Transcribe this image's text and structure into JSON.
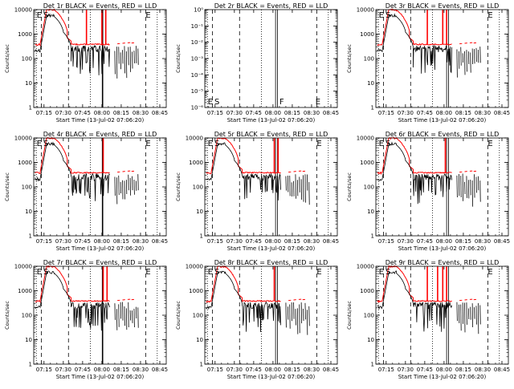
{
  "chart_data": {
    "type": "line",
    "layout": "3x3 grid",
    "x_tick_labels": [
      "07:15",
      "07:30",
      "07:45",
      "08:00",
      "08:15",
      "08:30",
      "08:45"
    ],
    "x_tick_minutes": [
      15,
      30,
      45,
      60,
      75,
      90,
      105
    ],
    "xlim_minutes": [
      7,
      110
    ],
    "xlabel": "Start Time (13-Jul-02 07:06:20)",
    "ylabel": "Counts/sec",
    "y_scale": "log",
    "series_colors": {
      "events": "#000000",
      "lld": "#ff0000"
    },
    "panels": [
      {
        "title": "Det 1r BLACK = Events, RED = LLD",
        "ylim": [
          1,
          10000
        ],
        "y_tick_labels": [
          "1",
          "10",
          "100",
          "1000",
          "10000"
        ],
        "y_tick_values": [
          1,
          10,
          100,
          1000,
          10000
        ],
        "markers": [
          "E",
          "S",
          "E"
        ],
        "has_data": true,
        "lld_spikes": [
          48,
          60,
          63
        ],
        "solid_lines": [
          60.5
        ],
        "dashed_lines": [
          13,
          34,
          94
        ],
        "dotted_lines": [
          9,
          51,
          103
        ]
      },
      {
        "title": "Det 2r BLACK = Events, RED = LLD",
        "ylim": [
          1e-06,
          1
        ],
        "y_tick_labels": [
          "10⁰",
          "10⁻¹",
          "10⁻²",
          "10⁻³",
          "10⁻⁴",
          "10⁻⁵",
          "10⁻⁶"
        ],
        "y_tick_values": [
          1,
          0.1,
          0.01,
          0.001,
          0.0001,
          1e-05,
          1e-06
        ],
        "markers": [
          "E",
          "S",
          "F",
          "E"
        ],
        "has_data": false,
        "lld_spikes": [],
        "solid_lines": [
          62,
          63.5
        ],
        "dashed_lines": [
          13,
          34,
          94
        ],
        "dotted_lines": [
          9,
          51,
          103
        ]
      },
      {
        "title": "Det 3r BLACK = Events, RED = LLD",
        "ylim": [
          1,
          10000
        ],
        "y_tick_labels": [
          "1",
          "10",
          "100",
          "1000",
          "10000"
        ],
        "y_tick_values": [
          1,
          10,
          100,
          1000,
          10000
        ],
        "markers": [
          "E",
          "S",
          "E"
        ],
        "has_data": true,
        "lld_spikes": [
          47,
          59,
          62
        ],
        "solid_lines": [
          62,
          63.5
        ],
        "dashed_lines": [
          13,
          34,
          94
        ],
        "dotted_lines": [
          9,
          51,
          103
        ]
      },
      {
        "title": "Det 4r BLACK = Events, RED = LLD",
        "ylim": [
          1,
          10000
        ],
        "y_tick_labels": [
          "1",
          "10",
          "100",
          "1000",
          "10000"
        ],
        "y_tick_values": [
          1,
          10,
          100,
          1000,
          10000
        ],
        "markers": [
          "E",
          "S",
          "E"
        ],
        "has_data": true,
        "lld_spikes": [
          61
        ],
        "solid_lines": [
          60.5
        ],
        "dashed_lines": [
          13,
          34,
          94
        ],
        "dotted_lines": [
          9,
          51,
          103
        ]
      },
      {
        "title": "Det 5r BLACK = Events, RED = LLD",
        "ylim": [
          1,
          10000
        ],
        "y_tick_labels": [
          "1",
          "10",
          "100",
          "1000",
          "10000"
        ],
        "y_tick_values": [
          1,
          10,
          100,
          1000,
          10000
        ],
        "markers": [
          "E",
          "S",
          "E"
        ],
        "has_data": true,
        "lld_spikes": [
          61,
          64
        ],
        "solid_lines": [
          62,
          63.5
        ],
        "dashed_lines": [
          13,
          34,
          94
        ],
        "dotted_lines": [
          9,
          51,
          103
        ]
      },
      {
        "title": "Det 6r BLACK = Events, RED = LLD",
        "ylim": [
          1,
          10000
        ],
        "y_tick_labels": [
          "1",
          "10",
          "100",
          "1000",
          "10000"
        ],
        "y_tick_values": [
          1,
          10,
          100,
          1000,
          10000
        ],
        "markers": [
          "E",
          "S",
          "E"
        ],
        "has_data": true,
        "lld_spikes": [
          61
        ],
        "solid_lines": [
          62,
          63.5
        ],
        "dashed_lines": [
          13,
          34,
          94
        ],
        "dotted_lines": [
          9,
          51,
          103
        ]
      },
      {
        "title": "Det 7r BLACK = Events, RED = LLD",
        "ylim": [
          1,
          10000
        ],
        "y_tick_labels": [
          "1",
          "10",
          "100",
          "1000",
          "10000"
        ],
        "y_tick_values": [
          1,
          10,
          100,
          1000,
          10000
        ],
        "markers": [
          "E",
          "S",
          "E"
        ],
        "has_data": true,
        "lld_spikes": [
          61,
          64
        ],
        "solid_lines": [
          60.5
        ],
        "dashed_lines": [
          13,
          34,
          94
        ],
        "dotted_lines": [
          9,
          51,
          103
        ]
      },
      {
        "title": "Det 8r BLACK = Events, RED = LLD",
        "ylim": [
          1,
          10000
        ],
        "y_tick_labels": [
          "1",
          "10",
          "100",
          "1000",
          "10000"
        ],
        "y_tick_values": [
          1,
          10,
          100,
          1000,
          10000
        ],
        "markers": [
          "E",
          "S",
          "E"
        ],
        "has_data": true,
        "lld_spikes": [
          61
        ],
        "solid_lines": [
          62,
          63.5
        ],
        "dashed_lines": [
          13,
          34,
          94
        ],
        "dotted_lines": [
          9,
          51,
          103
        ]
      },
      {
        "title": "Det 9r BLACK = Events, RED = LLD",
        "ylim": [
          1,
          10000
        ],
        "y_tick_labels": [
          "1",
          "10",
          "100",
          "1000",
          "10000"
        ],
        "y_tick_values": [
          1,
          10,
          100,
          1000,
          10000
        ],
        "markers": [
          "E",
          "S",
          "E"
        ],
        "has_data": true,
        "lld_spikes": [
          47,
          55,
          59,
          62
        ],
        "solid_lines": [
          62,
          63.5
        ],
        "dashed_lines": [
          13,
          34,
          94
        ],
        "dotted_lines": [
          9,
          51,
          103
        ]
      }
    ]
  }
}
